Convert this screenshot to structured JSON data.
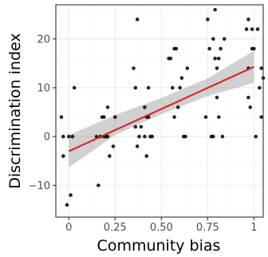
{
  "chart_data": {
    "type": "scatter",
    "xlabel": "Community bias",
    "ylabel": "Discrimination index",
    "xlim": [
      -0.07,
      1.05
    ],
    "ylim": [
      -16.5,
      27
    ],
    "x_ticks": [
      0,
      0.25,
      0.5,
      0.75,
      1
    ],
    "x_tick_labels": [
      "0",
      "0.25",
      "0.50",
      "0.75",
      "1"
    ],
    "y_ticks": [
      -10,
      0,
      10,
      20
    ],
    "y_tick_labels": [
      "−10",
      "0",
      "10",
      "20"
    ],
    "grid": true,
    "legend": "none",
    "colors": {
      "points": "#000000",
      "fit_line": "#e41a1c",
      "confidence_band": "#999999"
    },
    "points": [
      {
        "x": -0.04,
        "y": 4
      },
      {
        "x": -0.03,
        "y": 0
      },
      {
        "x": -0.03,
        "y": -4
      },
      {
        "x": -0.01,
        "y": -14
      },
      {
        "x": 0.0,
        "y": 0
      },
      {
        "x": 0.01,
        "y": -12
      },
      {
        "x": 0.02,
        "y": 0
      },
      {
        "x": 0.03,
        "y": 10
      },
      {
        "x": 0.15,
        "y": 0
      },
      {
        "x": 0.16,
        "y": -10
      },
      {
        "x": 0.17,
        "y": 0
      },
      {
        "x": 0.18,
        "y": 4
      },
      {
        "x": 0.19,
        "y": 4
      },
      {
        "x": 0.19,
        "y": 0
      },
      {
        "x": 0.2,
        "y": 0
      },
      {
        "x": 0.21,
        "y": 6
      },
      {
        "x": 0.21,
        "y": 0
      },
      {
        "x": 0.22,
        "y": -4
      },
      {
        "x": 0.24,
        "y": -2
      },
      {
        "x": 0.25,
        "y": 4
      },
      {
        "x": 0.35,
        "y": 14
      },
      {
        "x": 0.36,
        "y": 10
      },
      {
        "x": 0.36,
        "y": 2
      },
      {
        "x": 0.37,
        "y": -2
      },
      {
        "x": 0.37,
        "y": 24
      },
      {
        "x": 0.38,
        "y": 0
      },
      {
        "x": 0.39,
        "y": 2
      },
      {
        "x": 0.41,
        "y": 6
      },
      {
        "x": 0.41,
        "y": 0
      },
      {
        "x": 0.42,
        "y": -4
      },
      {
        "x": 0.42,
        "y": 4
      },
      {
        "x": 0.43,
        "y": 10
      },
      {
        "x": 0.43,
        "y": 4
      },
      {
        "x": 0.44,
        "y": 0
      },
      {
        "x": 0.45,
        "y": 0
      },
      {
        "x": 0.54,
        "y": 16
      },
      {
        "x": 0.55,
        "y": 16
      },
      {
        "x": 0.56,
        "y": 10
      },
      {
        "x": 0.57,
        "y": 4
      },
      {
        "x": 0.57,
        "y": 18
      },
      {
        "x": 0.58,
        "y": 18
      },
      {
        "x": 0.59,
        "y": 6
      },
      {
        "x": 0.6,
        "y": 10
      },
      {
        "x": 0.61,
        "y": 12
      },
      {
        "x": 0.62,
        "y": 0
      },
      {
        "x": 0.63,
        "y": 0
      },
      {
        "x": 0.64,
        "y": 14
      },
      {
        "x": 0.74,
        "y": 4
      },
      {
        "x": 0.75,
        "y": 24
      },
      {
        "x": 0.76,
        "y": 18
      },
      {
        "x": 0.77,
        "y": 0
      },
      {
        "x": 0.78,
        "y": 0
      },
      {
        "x": 0.78,
        "y": 20
      },
      {
        "x": 0.79,
        "y": 16
      },
      {
        "x": 0.79,
        "y": 26
      },
      {
        "x": 0.8,
        "y": 14
      },
      {
        "x": 0.8,
        "y": 8
      },
      {
        "x": 0.81,
        "y": 4
      },
      {
        "x": 0.81,
        "y": 16
      },
      {
        "x": 0.82,
        "y": 18
      },
      {
        "x": 0.83,
        "y": 0
      },
      {
        "x": 0.84,
        "y": 20
      },
      {
        "x": 0.96,
        "y": 22
      },
      {
        "x": 0.97,
        "y": 24
      },
      {
        "x": 0.97,
        "y": 14
      },
      {
        "x": 0.97,
        "y": 8
      },
      {
        "x": 0.98,
        "y": 6
      },
      {
        "x": 0.99,
        "y": 22
      },
      {
        "x": 0.99,
        "y": 18
      },
      {
        "x": 1.0,
        "y": 18
      },
      {
        "x": 1.01,
        "y": 0
      },
      {
        "x": 1.02,
        "y": 22
      },
      {
        "x": 1.03,
        "y": 10
      },
      {
        "x": 1.04,
        "y": 4
      },
      {
        "x": 1.04,
        "y": 14
      },
      {
        "x": 1.05,
        "y": 12
      }
    ],
    "fit_line": {
      "x": [
        0,
        1
      ],
      "y": [
        -3,
        14.3
      ]
    },
    "confidence_band": {
      "x": [
        0,
        0.25,
        0.5,
        0.75,
        1
      ],
      "lower": [
        -6.3,
        0.3,
        4.6,
        8.3,
        11
      ],
      "upper": [
        0.3,
        4.4,
        7.9,
        11.9,
        17.6
      ]
    }
  }
}
